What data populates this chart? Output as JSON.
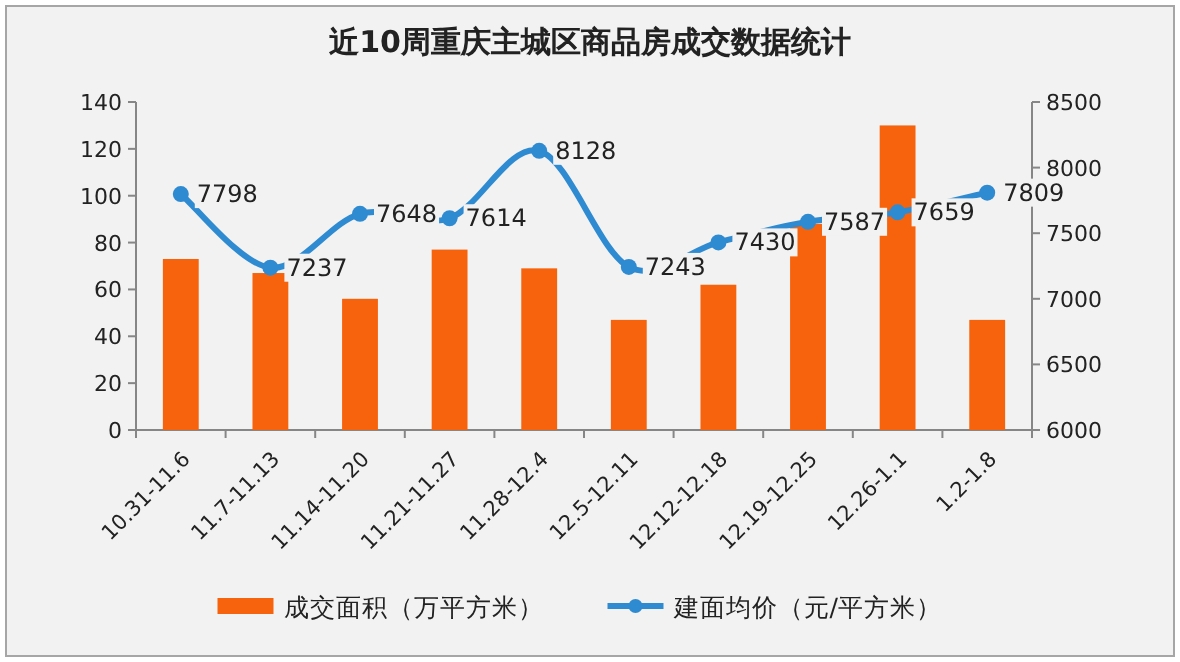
{
  "chart_data": {
    "type": "bar",
    "title": "近10周重庆主城区商品房成交数据统计",
    "categories": [
      "10.31-11.6",
      "11.7-11.13",
      "11.14-11.20",
      "11.21-11.27",
      "11.28-12.4",
      "12.5-12.11",
      "12.12-12.18",
      "12.19-12.25",
      "12.26-1.1",
      "1.2-1.8"
    ],
    "series": [
      {
        "name": "成交面积（万平方米）",
        "color": "#f7630c",
        "values": [
          73,
          67,
          56,
          77,
          69,
          47,
          62,
          88,
          130,
          47
        ]
      },
      {
        "name": "建面均价（元/平方米）",
        "type": "line",
        "axis": "y2",
        "color": "#2e8bd1",
        "values": [
          7798,
          7237,
          7648,
          7614,
          8128,
          7243,
          7430,
          7587,
          7659,
          7809
        ],
        "value_labels": [
          "7798",
          "7237",
          "7648",
          "7614",
          "8128",
          "7243",
          "7430",
          "7587",
          "7659",
          "7809"
        ]
      }
    ],
    "ylim": [
      0,
      140
    ],
    "yticks": [
      0,
      20,
      40,
      60,
      80,
      100,
      120,
      140
    ],
    "y2lim": [
      6000,
      8500
    ],
    "y2ticks": [
      6000,
      6500,
      7000,
      7500,
      8000,
      8500
    ],
    "marker": "circle",
    "legend": "bottom",
    "grid": false
  }
}
